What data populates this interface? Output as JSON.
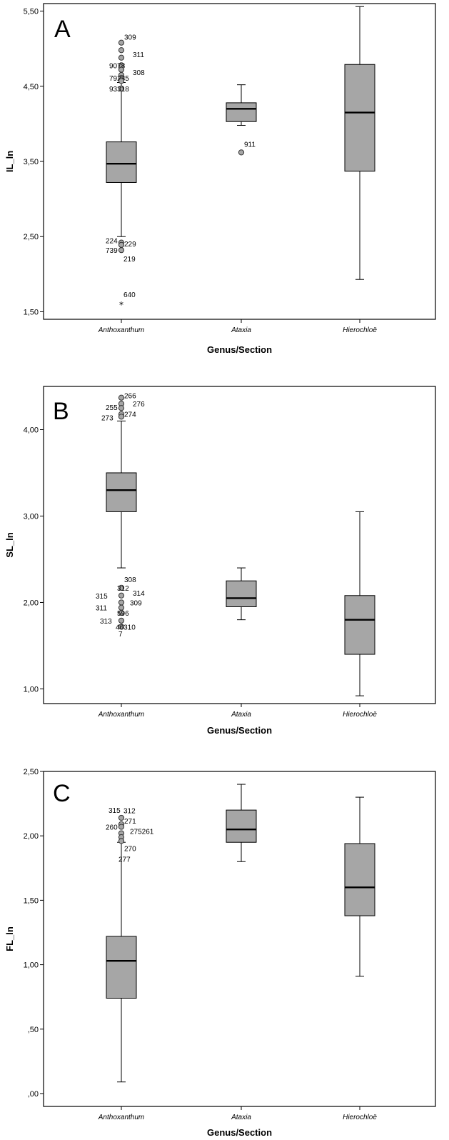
{
  "chart_data": [
    {
      "type": "box",
      "panel": "A",
      "xlabel": "Genus/Section",
      "ylabel": "IL_ln",
      "ylim": [
        1.4,
        5.6
      ],
      "yticks": [
        1.5,
        2.5,
        3.5,
        4.5,
        5.5
      ],
      "ytick_labels": [
        "1,50",
        "2,50",
        "3,50",
        "4,50",
        "5,50"
      ],
      "categories": [
        "Anthoxanthum",
        "Ataxia",
        "Hierochloë"
      ],
      "boxes": [
        {
          "min": 2.5,
          "q1": 3.22,
          "median": 3.47,
          "q3": 3.76,
          "max": 4.55
        },
        {
          "min": 3.98,
          "q1": 4.03,
          "median": 4.2,
          "q3": 4.28,
          "max": 4.52
        },
        {
          "min": 1.93,
          "q1": 3.37,
          "median": 4.15,
          "q3": 4.79,
          "max": 5.56
        }
      ],
      "outliers": [
        {
          "cat": 0,
          "y": 5.08,
          "marker": "circle",
          "label": "309",
          "dx": 4,
          "dy": -4,
          "anchor": "start"
        },
        {
          "cat": 0,
          "y": 4.98,
          "marker": "circle",
          "label": "",
          "dx": 0,
          "dy": 0,
          "anchor": "start"
        },
        {
          "cat": 0,
          "y": 4.88,
          "marker": "circle",
          "label": "311",
          "dx": 16,
          "dy": -1,
          "anchor": "start"
        },
        {
          "cat": 0,
          "y": 4.78,
          "marker": "circle",
          "label": "9078",
          "dx": -17,
          "dy": 4,
          "anchor": "start"
        },
        {
          "cat": 0,
          "y": 4.72,
          "marker": "circle",
          "label": "",
          "dx": 0,
          "dy": 0,
          "anchor": "start"
        },
        {
          "cat": 0,
          "y": 4.65,
          "marker": "circle",
          "label": "308",
          "dx": 16,
          "dy": 0,
          "anchor": "start"
        },
        {
          "cat": 0,
          "y": 4.61,
          "marker": "circle",
          "label": "79285",
          "dx": -17,
          "dy": 4,
          "anchor": "start"
        },
        {
          "cat": 0,
          "y": 4.57,
          "marker": "circle",
          "label": "",
          "dx": 0,
          "dy": 0,
          "anchor": "start"
        },
        {
          "cat": 0,
          "y": 4.47,
          "marker": "circle",
          "label": "93318",
          "dx": -17,
          "dy": 4,
          "anchor": "start"
        },
        {
          "cat": 1,
          "y": 3.62,
          "marker": "circle",
          "label": "911",
          "dx": 4,
          "dy": -8,
          "anchor": "start"
        },
        {
          "cat": 0,
          "y": 2.42,
          "marker": "circle",
          "label": "224",
          "dx": -22,
          "dy": 1,
          "anchor": "start"
        },
        {
          "cat": 0,
          "y": 2.39,
          "marker": "circle",
          "label": "229",
          "dx": 4,
          "dy": 2,
          "anchor": "start"
        },
        {
          "cat": 0,
          "y": 2.32,
          "marker": "circle",
          "label": "739",
          "dx": -22,
          "dy": 4,
          "anchor": "start"
        },
        {
          "cat": 0,
          "y": 2.21,
          "marker": "none",
          "label": "219",
          "dx": 3,
          "dy": 4,
          "anchor": "start"
        },
        {
          "cat": 0,
          "y": 1.6,
          "marker": "star",
          "label": "640",
          "dx": 3,
          "dy": -10,
          "anchor": "start"
        }
      ]
    },
    {
      "type": "box",
      "panel": "B",
      "xlabel": "Genus/Section",
      "ylabel": "SL_ln",
      "ylim": [
        0.83,
        4.5
      ],
      "yticks": [
        1.0,
        2.0,
        3.0,
        4.0
      ],
      "ytick_labels": [
        "1,00",
        "2,00",
        "3,00",
        "4,00"
      ],
      "categories": [
        "Anthoxanthum",
        "Ataxia",
        "Hierochloë"
      ],
      "boxes": [
        {
          "min": 2.4,
          "q1": 3.05,
          "median": 3.3,
          "q3": 3.5,
          "max": 4.1
        },
        {
          "min": 1.8,
          "q1": 1.95,
          "median": 2.05,
          "q3": 2.25,
          "max": 2.4
        },
        {
          "min": 0.92,
          "q1": 1.4,
          "median": 1.8,
          "q3": 2.08,
          "max": 3.05
        }
      ],
      "outliers": [
        {
          "cat": 0,
          "y": 4.37,
          "marker": "circle",
          "label": "266",
          "dx": 4,
          "dy": 1,
          "anchor": "start"
        },
        {
          "cat": 0,
          "y": 4.3,
          "marker": "circle",
          "label": "276",
          "dx": 16,
          "dy": 4,
          "anchor": "start"
        },
        {
          "cat": 0,
          "y": 4.25,
          "marker": "circle",
          "label": "255",
          "dx": -22,
          "dy": 3,
          "anchor": "start"
        },
        {
          "cat": 0,
          "y": 4.18,
          "marker": "circle",
          "label": "274",
          "dx": 4,
          "dy": 4,
          "anchor": "start"
        },
        {
          "cat": 0,
          "y": 4.15,
          "marker": "circle",
          "label": "273",
          "dx": -28,
          "dy": 5,
          "anchor": "start"
        },
        {
          "cat": 0,
          "y": 2.27,
          "marker": "none",
          "label": "308",
          "dx": 4,
          "dy": 4,
          "anchor": "start"
        },
        {
          "cat": 0,
          "y": 2.17,
          "marker": "circle",
          "label": "312",
          "dx": -6,
          "dy": 4,
          "anchor": "start"
        },
        {
          "cat": 0,
          "y": 2.12,
          "marker": "none",
          "label": "314",
          "dx": 16,
          "dy": 5,
          "anchor": "start"
        },
        {
          "cat": 0,
          "y": 2.08,
          "marker": "circle",
          "label": "315",
          "dx": -36,
          "dy": 4,
          "anchor": "start"
        },
        {
          "cat": 0,
          "y": 2.0,
          "marker": "circle",
          "label": "309",
          "dx": 12,
          "dy": 4,
          "anchor": "start"
        },
        {
          "cat": 0,
          "y": 1.94,
          "marker": "circle",
          "label": "311",
          "dx": -36,
          "dy": 4,
          "anchor": "start"
        },
        {
          "cat": 0,
          "y": 1.88,
          "marker": "circle",
          "label": "596",
          "dx": -6,
          "dy": 4,
          "anchor": "start"
        },
        {
          "cat": 0,
          "y": 1.79,
          "marker": "circle",
          "label": "313",
          "dx": -30,
          "dy": 4,
          "anchor": "start"
        },
        {
          "cat": 0,
          "y": 1.72,
          "marker": "circle",
          "label": "46310",
          "dx": -8,
          "dy": 4,
          "anchor": "start"
        },
        {
          "cat": 0,
          "y": 1.64,
          "marker": "none",
          "label": "7",
          "dx": -4,
          "dy": 4,
          "anchor": "start"
        }
      ]
    },
    {
      "type": "box",
      "panel": "C",
      "xlabel": "Genus/Section",
      "ylabel": "FL_ln",
      "ylim": [
        -0.1,
        2.5
      ],
      "yticks": [
        0.0,
        0.5,
        1.0,
        1.5,
        2.0,
        2.5
      ],
      "ytick_labels": [
        ",00",
        ",50",
        "1,00",
        "1,50",
        "2,00",
        "2,50"
      ],
      "categories": [
        "Anthoxanthum",
        "Ataxia",
        "Hierochloë"
      ],
      "boxes": [
        {
          "min": 0.09,
          "q1": 0.74,
          "median": 1.03,
          "q3": 1.22,
          "max": 1.95
        },
        {
          "min": 1.8,
          "q1": 1.95,
          "median": 2.05,
          "q3": 2.2,
          "max": 2.4
        },
        {
          "min": 0.91,
          "q1": 1.38,
          "median": 1.6,
          "q3": 1.94,
          "max": 2.3
        }
      ],
      "outliers": [
        {
          "cat": 0,
          "y": 2.14,
          "marker": "circle",
          "label": "315",
          "dx": -18,
          "dy": -7,
          "anchor": "start"
        },
        {
          "cat": 0,
          "y": 2.16,
          "marker": "none",
          "label": "312",
          "dx": 3,
          "dy": -3,
          "anchor": "start"
        },
        {
          "cat": 0,
          "y": 2.09,
          "marker": "circle",
          "label": "271",
          "dx": 4,
          "dy": -1,
          "anchor": "start"
        },
        {
          "cat": 0,
          "y": 2.07,
          "marker": "circle",
          "label": "260",
          "dx": -22,
          "dy": 4,
          "anchor": "start"
        },
        {
          "cat": 0,
          "y": 2.02,
          "marker": "circle",
          "label": "275261",
          "dx": 12,
          "dy": 1,
          "anchor": "start"
        },
        {
          "cat": 0,
          "y": 1.99,
          "marker": "circle",
          "label": "",
          "dx": 0,
          "dy": 0,
          "anchor": "start"
        },
        {
          "cat": 0,
          "y": 1.96,
          "marker": "circle",
          "label": "270",
          "dx": 4,
          "dy": 14,
          "anchor": "start"
        },
        {
          "cat": 0,
          "y": 1.82,
          "marker": "none",
          "label": "277",
          "dx": -4,
          "dy": 4,
          "anchor": "start"
        }
      ]
    }
  ]
}
